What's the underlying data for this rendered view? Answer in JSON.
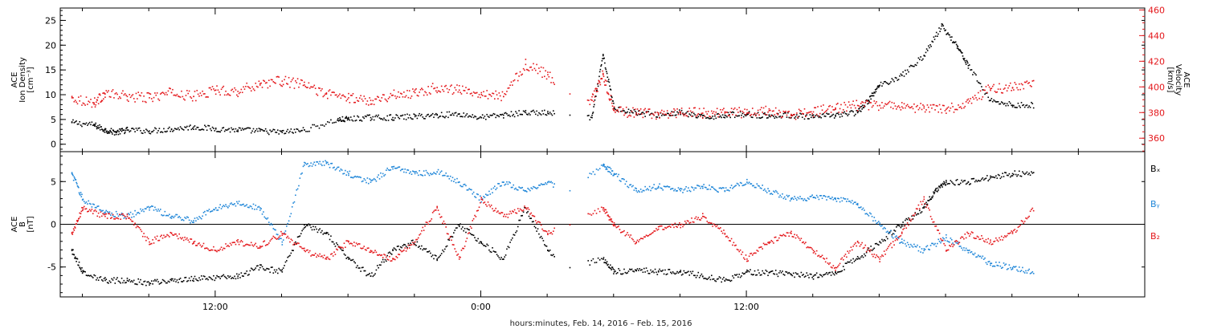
{
  "colors": {
    "black": "#000000",
    "red": "#e4171b",
    "blue": "#1f86d8"
  },
  "footer_label": "hours:minutes, Feb. 14, 2016 – Feb. 15, 2016",
  "chart_data": [
    {
      "type": "scatter",
      "panel": "plasma",
      "left_axis": {
        "title_lines": [
          "ACE",
          "Ion Density",
          "[cm⁻³]"
        ],
        "ylim": [
          -1.5,
          27.5
        ],
        "ticks": [
          0,
          5,
          10,
          15,
          20,
          25
        ],
        "color": "#000000"
      },
      "right_axis": {
        "title_lines": [
          "ACE",
          "Velocity",
          "[km/s]"
        ],
        "ylim": [
          349.5,
          461.5
        ],
        "ticks": [
          360,
          380,
          400,
          420,
          440,
          460
        ],
        "color": "#e4171b"
      },
      "series": [
        {
          "axis": "left",
          "color": "#000000",
          "points": [
            [
              5.5,
              4.5
            ],
            [
              6.5,
              4
            ],
            [
              7,
              3
            ],
            [
              7.5,
              2.5
            ],
            [
              8,
              3
            ],
            [
              9,
              2.8
            ],
            [
              10,
              3.2
            ],
            [
              11,
              3.6
            ],
            [
              12,
              3.2
            ],
            [
              13,
              3
            ],
            [
              14,
              2.8
            ],
            [
              15,
              2.5
            ],
            [
              16,
              3
            ],
            [
              17.5,
              5
            ],
            [
              18,
              5.2
            ],
            [
              19,
              5.5
            ],
            [
              20,
              5.5
            ],
            [
              21,
              5.7
            ],
            [
              22,
              6
            ],
            [
              23,
              6.2
            ],
            [
              24,
              5.5
            ],
            [
              25,
              6
            ],
            [
              26,
              6.5
            ],
            [
              27,
              6.4
            ],
            [
              28,
              6
            ],
            [
              29,
              5.5
            ],
            [
              29.5,
              18
            ],
            [
              30,
              7.5
            ],
            [
              31,
              6.5
            ],
            [
              32,
              6
            ],
            [
              33,
              6.5
            ],
            [
              34,
              5.5
            ],
            [
              35,
              6
            ],
            [
              36,
              6.2
            ],
            [
              37,
              5.8
            ],
            [
              38,
              6
            ],
            [
              39,
              5.5
            ],
            [
              40,
              6
            ],
            [
              41,
              6.5
            ],
            [
              41.5,
              9
            ],
            [
              42,
              12
            ],
            [
              43,
              14
            ],
            [
              44,
              18
            ],
            [
              44.8,
              24
            ],
            [
              45.5,
              20
            ],
            [
              46,
              16
            ],
            [
              47,
              9
            ],
            [
              48,
              8
            ],
            [
              49,
              8
            ]
          ]
        },
        {
          "axis": "right",
          "color": "#e4171b",
          "points": [
            [
              5.5,
              392
            ],
            [
              6.5,
              388
            ],
            [
              7,
              395
            ],
            [
              8,
              393
            ],
            [
              9,
              392
            ],
            [
              10,
              396
            ],
            [
              11,
              393
            ],
            [
              12,
              398
            ],
            [
              13,
              397
            ],
            [
              14,
              403
            ],
            [
              15,
              405
            ],
            [
              16,
              402
            ],
            [
              17,
              395
            ],
            [
              18,
              392
            ],
            [
              19,
              390
            ],
            [
              20,
              394
            ],
            [
              21,
              396
            ],
            [
              22,
              400
            ],
            [
              23,
              398
            ],
            [
              24,
              396
            ],
            [
              25,
              393
            ],
            [
              26,
              418
            ],
            [
              27,
              410
            ],
            [
              28,
              395
            ],
            [
              29,
              390
            ],
            [
              29.5,
              410
            ],
            [
              30,
              382
            ],
            [
              31,
              380
            ],
            [
              32,
              379
            ],
            [
              33,
              381
            ],
            [
              34,
              380
            ],
            [
              35,
              381
            ],
            [
              36,
              380
            ],
            [
              37,
              382
            ],
            [
              38,
              378
            ],
            [
              39,
              381
            ],
            [
              40,
              384
            ],
            [
              41,
              386
            ],
            [
              42,
              386
            ],
            [
              43,
              385
            ],
            [
              44,
              384
            ],
            [
              45,
              383
            ],
            [
              46,
              388
            ],
            [
              47,
              399
            ],
            [
              48,
              400
            ],
            [
              49,
              402
            ]
          ]
        }
      ]
    },
    {
      "type": "scatter",
      "panel": "magnetic",
      "left_axis": {
        "title_lines": [
          "ACE",
          "B",
          "[nT]"
        ],
        "ylim": [
          -8.5,
          8.5
        ],
        "ticks": [
          -5,
          0,
          5
        ],
        "color": "#000000"
      },
      "zero_line": true,
      "legend": {
        "placement": "right",
        "entries": [
          {
            "name": "Bₓ",
            "color": "#000000"
          },
          {
            "name": "Bᵧ",
            "color": "#1f86d8"
          },
          {
            "name": "B₂",
            "color": "#e4171b"
          }
        ]
      },
      "series": [
        {
          "name": "Bx",
          "color": "#000000",
          "points": [
            [
              5.5,
              -3
            ],
            [
              6,
              -5.5
            ],
            [
              7,
              -6.5
            ],
            [
              8,
              -6.5
            ],
            [
              9,
              -6.8
            ],
            [
              10,
              -6.5
            ],
            [
              11,
              -6.3
            ],
            [
              12,
              -6.2
            ],
            [
              13,
              -6
            ],
            [
              14,
              -5
            ],
            [
              15,
              -5.5
            ],
            [
              16,
              0
            ],
            [
              17,
              -1
            ],
            [
              18,
              -4
            ],
            [
              19,
              -6
            ],
            [
              20,
              -3
            ],
            [
              21,
              -2
            ],
            [
              22,
              -4
            ],
            [
              23,
              0
            ],
            [
              24,
              -2
            ],
            [
              25,
              -4
            ],
            [
              26,
              2
            ],
            [
              27,
              -3
            ],
            [
              28,
              -5
            ],
            [
              29.5,
              -4
            ],
            [
              30,
              -5.5
            ],
            [
              31,
              -5.3
            ],
            [
              32,
              -5.5
            ],
            [
              33,
              -5.5
            ],
            [
              34,
              -6
            ],
            [
              35,
              -6.5
            ],
            [
              36,
              -5.5
            ],
            [
              37,
              -5.6
            ],
            [
              38,
              -5.8
            ],
            [
              39,
              -6
            ],
            [
              40,
              -5.5
            ],
            [
              41,
              -4
            ],
            [
              42,
              -2
            ],
            [
              43,
              0
            ],
            [
              44,
              2
            ],
            [
              44.5,
              4
            ],
            [
              45,
              5
            ],
            [
              46,
              5
            ],
            [
              47,
              5.5
            ],
            [
              48,
              6
            ],
            [
              49,
              6
            ]
          ]
        },
        {
          "name": "By",
          "color": "#1f86d8",
          "points": [
            [
              5.5,
              6
            ],
            [
              6,
              3
            ],
            [
              7,
              1.5
            ],
            [
              8,
              1
            ],
            [
              9,
              2
            ],
            [
              10,
              1
            ],
            [
              11,
              0.5
            ],
            [
              12,
              2
            ],
            [
              13,
              2.5
            ],
            [
              14,
              2
            ],
            [
              15,
              -2
            ],
            [
              16,
              7
            ],
            [
              17,
              7.2
            ],
            [
              18,
              6
            ],
            [
              19,
              5
            ],
            [
              20,
              6.8
            ],
            [
              21,
              6
            ],
            [
              22,
              6.2
            ],
            [
              23,
              5
            ],
            [
              24,
              3
            ],
            [
              25,
              5
            ],
            [
              26,
              4
            ],
            [
              27,
              5
            ],
            [
              28,
              4
            ],
            [
              29.5,
              7
            ],
            [
              30,
              6
            ],
            [
              31,
              4
            ],
            [
              32,
              4.5
            ],
            [
              33,
              4
            ],
            [
              34,
              4.5
            ],
            [
              35,
              4
            ],
            [
              36,
              5
            ],
            [
              37,
              4
            ],
            [
              38,
              3
            ],
            [
              39,
              3.2
            ],
            [
              40,
              3
            ],
            [
              41,
              2.5
            ],
            [
              42,
              0
            ],
            [
              43,
              -2
            ],
            [
              44,
              -3
            ],
            [
              45,
              -1.5
            ],
            [
              46,
              -3
            ],
            [
              47,
              -4.5
            ],
            [
              48,
              -5
            ],
            [
              49,
              -5.5
            ]
          ]
        },
        {
          "name": "Bz",
          "color": "#e4171b",
          "points": [
            [
              5.5,
              -1
            ],
            [
              6,
              2
            ],
            [
              7,
              1
            ],
            [
              8,
              1
            ],
            [
              9,
              -2
            ],
            [
              10,
              -1
            ],
            [
              11,
              -2
            ],
            [
              12,
              -3
            ],
            [
              13,
              -2
            ],
            [
              14,
              -2.5
            ],
            [
              15,
              -1
            ],
            [
              16,
              -3
            ],
            [
              17,
              -4
            ],
            [
              18,
              -2
            ],
            [
              19,
              -3
            ],
            [
              20,
              -4
            ],
            [
              21,
              -2
            ],
            [
              22,
              2
            ],
            [
              23,
              -4
            ],
            [
              24,
              3
            ],
            [
              25,
              1
            ],
            [
              26,
              2
            ],
            [
              27,
              -1
            ],
            [
              28,
              0
            ],
            [
              29.5,
              2
            ],
            [
              30,
              0
            ],
            [
              31,
              -2
            ],
            [
              32,
              -0.5
            ],
            [
              33,
              0
            ],
            [
              34,
              1
            ],
            [
              35,
              -1
            ],
            [
              36,
              -4
            ],
            [
              37,
              -2
            ],
            [
              38,
              -1
            ],
            [
              39,
              -3
            ],
            [
              40,
              -5
            ],
            [
              41,
              -2
            ],
            [
              42,
              -4
            ],
            [
              43,
              -1
            ],
            [
              44,
              3
            ],
            [
              45,
              -3
            ],
            [
              46,
              -1
            ],
            [
              47,
              -2
            ],
            [
              48,
              -1
            ],
            [
              49,
              2
            ]
          ]
        }
      ]
    }
  ],
  "x_axis": {
    "unit": "hours since Feb 14 00:00",
    "xlim": [
      5,
      54
    ],
    "tick_labels": [
      {
        "value": 12,
        "label": "12:00"
      },
      {
        "value": 24,
        "label": "0:00"
      },
      {
        "value": 36,
        "label": "12:00"
      }
    ],
    "minor_step": 3
  }
}
